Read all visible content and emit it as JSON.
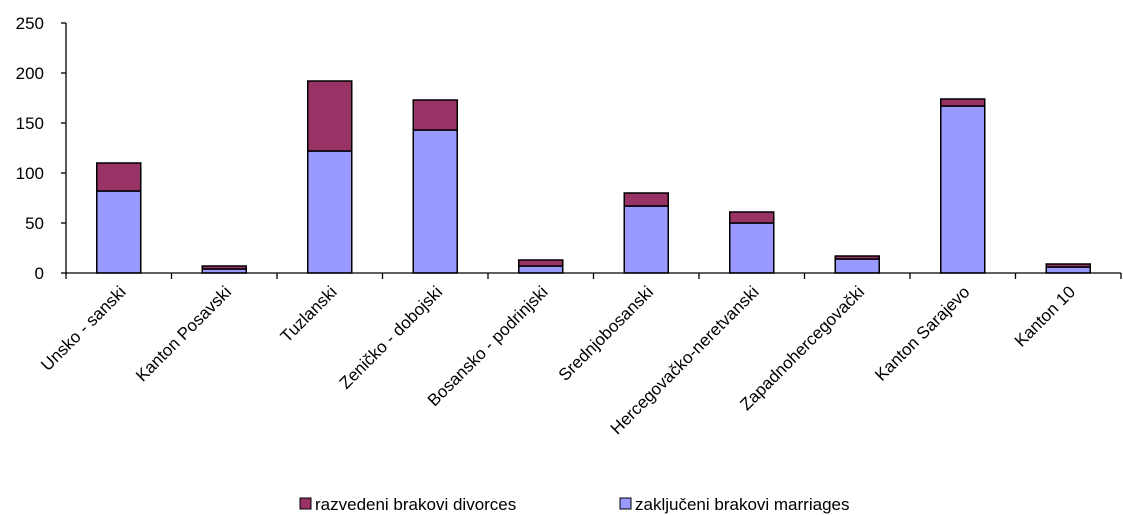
{
  "chart_data": {
    "type": "bar",
    "stacked": true,
    "title": "",
    "xlabel": "",
    "ylabel": "",
    "ylim": [
      0,
      250
    ],
    "yticks": [
      0,
      50,
      100,
      150,
      200,
      250
    ],
    "grid": false,
    "legend_position": "bottom",
    "categories": [
      "Unsko - sanski",
      "Kanton Posavski",
      "Tuzlanski",
      "Zeničko - dobojski",
      "Bosansko - podrinjski",
      "Srednjobosanski",
      "Hercegovačko-neretvanski",
      "Zapadnohercegovački",
      "Kanton Sarajevo",
      "Kanton 10"
    ],
    "series": [
      {
        "name": "zaključeni brakovi marriages",
        "color": "#9999ff",
        "values": [
          82,
          4,
          122,
          143,
          7,
          67,
          50,
          14,
          167,
          6
        ]
      },
      {
        "name": "razvedeni brakovi divorces",
        "color": "#993366",
        "values": [
          28,
          3,
          70,
          30,
          6,
          13,
          11,
          3,
          7,
          3
        ]
      }
    ],
    "legend": [
      {
        "label": "razvedeni brakovi divorces",
        "color": "#993366"
      },
      {
        "label": "zaključeni brakovi marriages",
        "color": "#9999ff"
      }
    ]
  }
}
